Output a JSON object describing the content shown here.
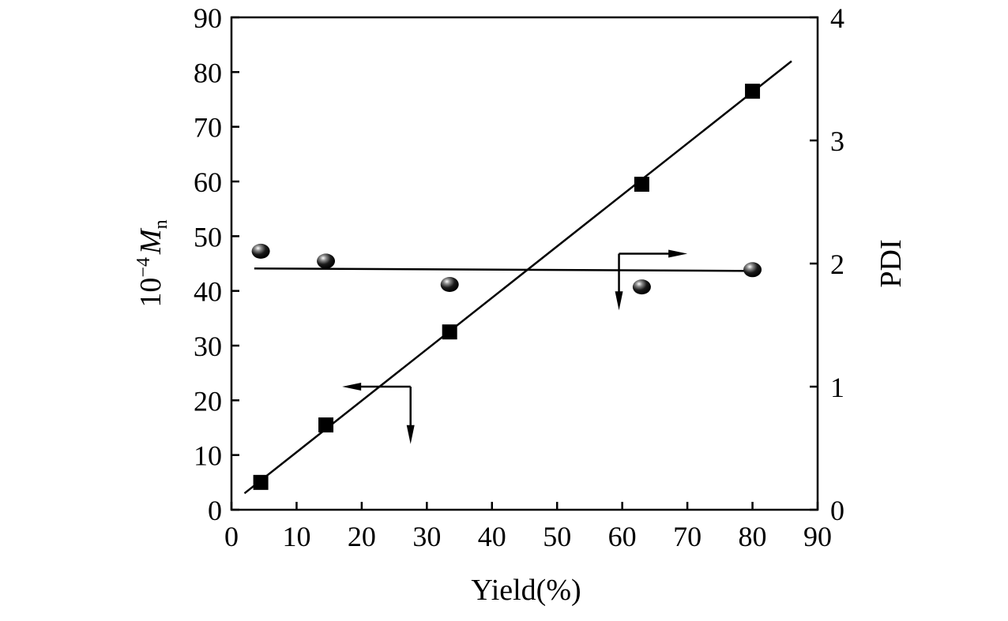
{
  "chart_data": {
    "type": "scatter",
    "xlabel": "Yield(%)",
    "ylabel_left": {
      "prefix": "10",
      "exponent": "−4",
      "symbol": "M",
      "subscript": "n"
    },
    "ylabel_right": "PDI",
    "xlim": [
      0,
      90
    ],
    "ylim_left": [
      0,
      90
    ],
    "ylim_right": [
      0,
      4
    ],
    "x_ticks": [
      "0",
      "10",
      "20",
      "30",
      "40",
      "50",
      "60",
      "70",
      "80",
      "90"
    ],
    "y_left_ticks": [
      "0",
      "10",
      "20",
      "30",
      "40",
      "50",
      "60",
      "70",
      "80",
      "90"
    ],
    "y_right_ticks": [
      "0",
      "1",
      "2",
      "3",
      "4"
    ],
    "grid": false,
    "series": [
      {
        "axis": "left",
        "marker": "square",
        "x": [
          4.5,
          14.5,
          33.5,
          63,
          80
        ],
        "y": [
          5,
          15.5,
          32.5,
          59.5,
          76.5
        ],
        "fit_line": {
          "x": [
            2,
            86
          ],
          "y": [
            3,
            82
          ]
        }
      },
      {
        "axis": "right",
        "marker": "sphere",
        "x": [
          4.5,
          14.5,
          33.5,
          63,
          80
        ],
        "y": [
          2.1,
          2.02,
          1.83,
          1.81,
          1.95
        ],
        "fit_line": {
          "x": [
            3.5,
            80
          ],
          "y": [
            1.96,
            1.94
          ]
        }
      }
    ],
    "annotations": [
      {
        "type": "axis-pointer",
        "direction": "left",
        "x": 27.5,
        "y": 22.5,
        "target": "left"
      },
      {
        "type": "axis-pointer",
        "direction": "right",
        "x": 59.5,
        "y": 2.08,
        "target": "right"
      }
    ]
  }
}
